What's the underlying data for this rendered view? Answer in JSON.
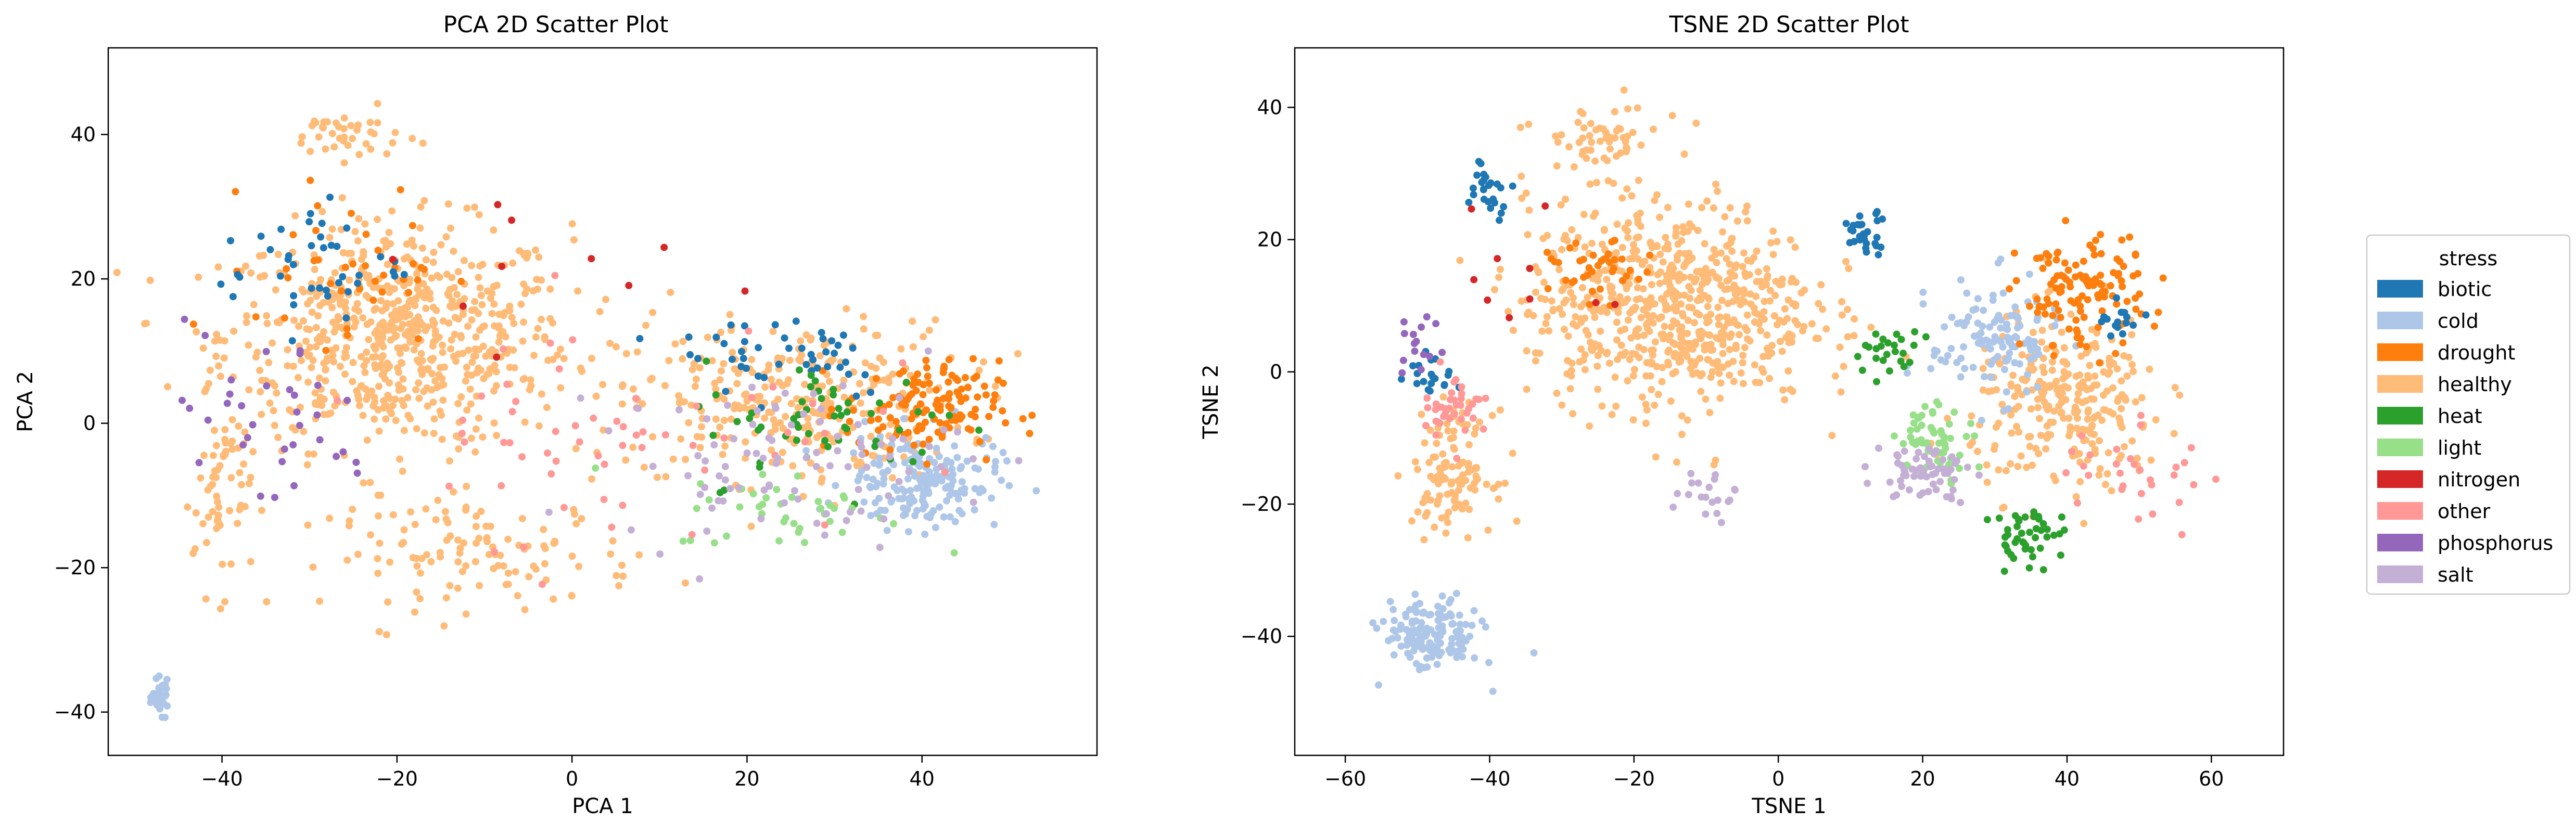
{
  "legend": {
    "title": "stress",
    "placement": "right",
    "items": [
      {
        "label": "biotic",
        "color": "#1f77b4"
      },
      {
        "label": "cold",
        "color": "#aec7e8"
      },
      {
        "label": "drought",
        "color": "#ff7f0e"
      },
      {
        "label": "healthy",
        "color": "#ffbb78"
      },
      {
        "label": "heat",
        "color": "#2ca02c"
      },
      {
        "label": "light",
        "color": "#98df8a"
      },
      {
        "label": "nitrogen",
        "color": "#d62728"
      },
      {
        "label": "other",
        "color": "#ff9896"
      },
      {
        "label": "phosphorus",
        "color": "#9467bd"
      },
      {
        "label": "salt",
        "color": "#c5b0d5"
      }
    ]
  },
  "chart_data": [
    {
      "type": "scatter",
      "title": "PCA 2D Scatter Plot",
      "xlabel": "PCA 1",
      "ylabel": "PCA 2",
      "xlim": [
        -53,
        60
      ],
      "ylim": [
        -46,
        52
      ],
      "xticks": [
        -40,
        -20,
        0,
        20,
        40
      ],
      "yticks": [
        -40,
        -20,
        0,
        20,
        40
      ],
      "grid": false,
      "clusters": [
        {
          "category": "healthy",
          "center": [
            -20,
            12
          ],
          "spread": [
            18,
            14
          ],
          "n": 700
        },
        {
          "category": "healthy",
          "center": [
            25,
            3
          ],
          "spread": [
            18,
            10
          ],
          "n": 320
        },
        {
          "category": "healthy",
          "center": [
            -10,
            -18
          ],
          "spread": [
            16,
            7
          ],
          "n": 120
        },
        {
          "category": "healthy",
          "center": [
            -40,
            -10
          ],
          "spread": [
            3,
            12
          ],
          "n": 60
        },
        {
          "category": "healthy",
          "center": [
            -26,
            40
          ],
          "spread": [
            6,
            3
          ],
          "n": 40
        },
        {
          "category": "cold",
          "center": [
            -47,
            -38
          ],
          "spread": [
            0.8,
            2
          ],
          "n": 45
        },
        {
          "category": "cold",
          "center": [
            40,
            -8
          ],
          "spread": [
            8,
            6
          ],
          "n": 180
        },
        {
          "category": "drought",
          "center": [
            40,
            2
          ],
          "spread": [
            8,
            6
          ],
          "n": 140
        },
        {
          "category": "drought",
          "center": [
            -25,
            22
          ],
          "spread": [
            10,
            10
          ],
          "n": 40
        },
        {
          "category": "biotic",
          "center": [
            -30,
            22
          ],
          "spread": [
            10,
            8
          ],
          "n": 40
        },
        {
          "category": "biotic",
          "center": [
            25,
            10
          ],
          "spread": [
            12,
            6
          ],
          "n": 45
        },
        {
          "category": "heat",
          "center": [
            30,
            0
          ],
          "spread": [
            14,
            8
          ],
          "n": 55
        },
        {
          "category": "light",
          "center": [
            25,
            -12
          ],
          "spread": [
            12,
            5
          ],
          "n": 40
        },
        {
          "category": "nitrogen",
          "center": [
            0,
            20
          ],
          "spread": [
            25,
            12
          ],
          "n": 10
        },
        {
          "category": "other",
          "center": [
            5,
            0
          ],
          "spread": [
            25,
            15
          ],
          "n": 60
        },
        {
          "category": "phosphorus",
          "center": [
            -35,
            0
          ],
          "spread": [
            12,
            12
          ],
          "n": 35
        },
        {
          "category": "salt",
          "center": [
            25,
            -5
          ],
          "spread": [
            18,
            10
          ],
          "n": 90
        }
      ]
    },
    {
      "type": "scatter",
      "title": "TSNE 2D Scatter Plot",
      "xlabel": "TSNE 1",
      "ylabel": "TSNE 2",
      "xlim": [
        -67,
        70
      ],
      "ylim": [
        -58,
        49
      ],
      "xticks": [
        -60,
        -40,
        -20,
        0,
        20,
        40,
        60
      ],
      "yticks": [
        -40,
        -20,
        0,
        20,
        40
      ],
      "grid": false,
      "clusters": [
        {
          "category": "healthy",
          "center": [
            -15,
            10
          ],
          "spread": [
            18,
            14
          ],
          "n": 700
        },
        {
          "category": "healthy",
          "center": [
            40,
            -5
          ],
          "spread": [
            12,
            12
          ],
          "n": 280
        },
        {
          "category": "healthy",
          "center": [
            -45,
            -15
          ],
          "spread": [
            5,
            8
          ],
          "n": 120
        },
        {
          "category": "healthy",
          "center": [
            -25,
            35
          ],
          "spread": [
            8,
            5
          ],
          "n": 60
        },
        {
          "category": "cold",
          "center": [
            -48,
            -40
          ],
          "spread": [
            6,
            5
          ],
          "n": 150
        },
        {
          "category": "cold",
          "center": [
            30,
            5
          ],
          "spread": [
            8,
            8
          ],
          "n": 120
        },
        {
          "category": "drought",
          "center": [
            42,
            12
          ],
          "spread": [
            8,
            8
          ],
          "n": 120
        },
        {
          "category": "drought",
          "center": [
            -25,
            15
          ],
          "spread": [
            6,
            4
          ],
          "n": 40
        },
        {
          "category": "biotic",
          "center": [
            12,
            21
          ],
          "spread": [
            3,
            3
          ],
          "n": 30
        },
        {
          "category": "biotic",
          "center": [
            -40,
            28
          ],
          "spread": [
            3,
            4
          ],
          "n": 25
        },
        {
          "category": "biotic",
          "center": [
            -48,
            0
          ],
          "spread": [
            3,
            3
          ],
          "n": 20
        },
        {
          "category": "biotic",
          "center": [
            47,
            8
          ],
          "spread": [
            3,
            3
          ],
          "n": 15
        },
        {
          "category": "heat",
          "center": [
            35,
            -25
          ],
          "spread": [
            5,
            4
          ],
          "n": 45
        },
        {
          "category": "heat",
          "center": [
            15,
            3
          ],
          "spread": [
            4,
            3
          ],
          "n": 25
        },
        {
          "category": "light",
          "center": [
            22,
            -10
          ],
          "spread": [
            5,
            5
          ],
          "n": 60
        },
        {
          "category": "nitrogen",
          "center": [
            -35,
            15
          ],
          "spread": [
            10,
            10
          ],
          "n": 10
        },
        {
          "category": "other",
          "center": [
            -45,
            -5
          ],
          "spread": [
            4,
            5
          ],
          "n": 40
        },
        {
          "category": "other",
          "center": [
            50,
            -15
          ],
          "spread": [
            10,
            8
          ],
          "n": 30
        },
        {
          "category": "phosphorus",
          "center": [
            -50,
            3
          ],
          "spread": [
            3,
            5
          ],
          "n": 15
        },
        {
          "category": "salt",
          "center": [
            20,
            -15
          ],
          "spread": [
            6,
            4
          ],
          "n": 60
        },
        {
          "category": "salt",
          "center": [
            -10,
            -18
          ],
          "spread": [
            4,
            4
          ],
          "n": 20
        }
      ]
    }
  ]
}
